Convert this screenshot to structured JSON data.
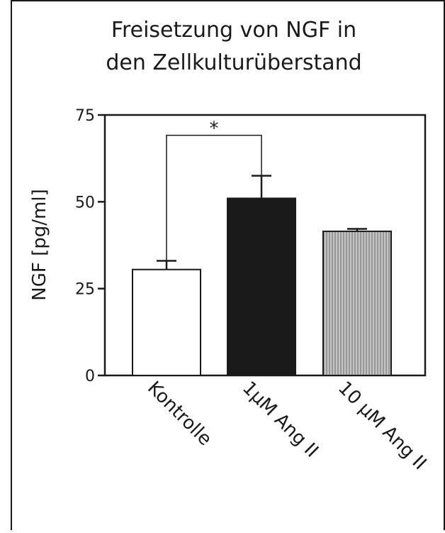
{
  "chart_data": {
    "type": "bar",
    "title": [
      "Freisetzung von NGF in",
      "den Zellkulturüberstand"
    ],
    "ylabel": "NGF [pg/ml]",
    "categories": [
      "Kontrolle",
      "1µM Ang II",
      "10 µM Ang II"
    ],
    "values": [
      30.5,
      51,
      41.5
    ],
    "errors": [
      2.5,
      6.5,
      0.7
    ],
    "colors": [
      "#ffffff",
      "#1a1a1a",
      "#bdbdbd"
    ],
    "hatch": [
      false,
      false,
      true
    ],
    "ylim": [
      0,
      75
    ],
    "yticks": [
      0,
      25,
      50,
      75
    ],
    "annotations": [
      {
        "text": "*",
        "from": 0,
        "to": 1
      }
    ]
  }
}
